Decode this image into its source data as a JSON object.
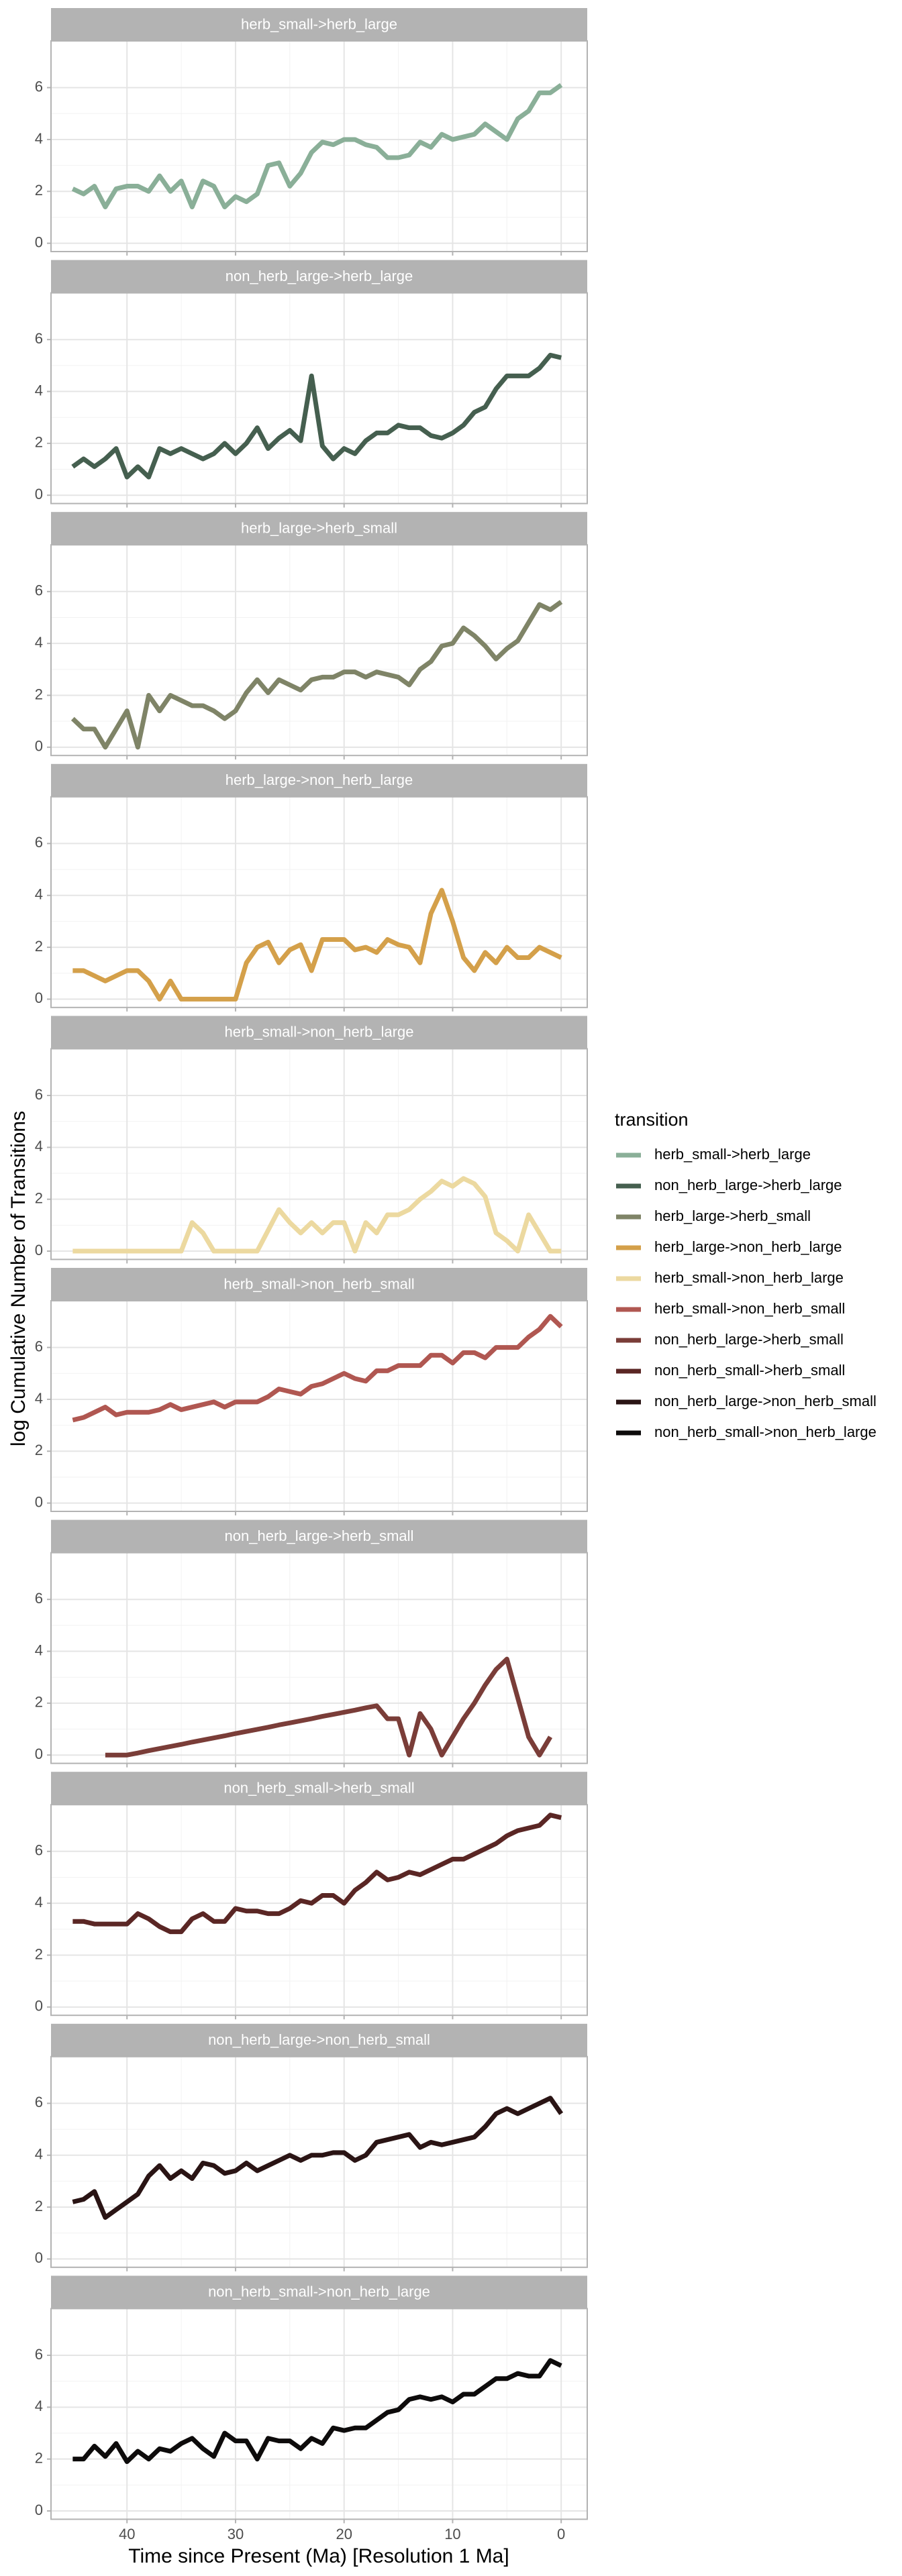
{
  "chart_data": {
    "type": "line",
    "y_label": "log Cumulative Number of Transitions",
    "x_label": "Time since Present (Ma) [Resolution 1 Ma]",
    "legend_title": "transition",
    "legend": "right",
    "grid": true,
    "x": [
      45,
      44,
      43,
      42,
      41,
      40,
      39,
      38,
      37,
      36,
      35,
      34,
      33,
      32,
      31,
      30,
      29,
      28,
      27,
      26,
      25,
      24,
      23,
      22,
      21,
      20,
      19,
      18,
      17,
      16,
      15,
      14,
      13,
      12,
      11,
      10,
      9,
      8,
      7,
      6,
      5,
      4,
      3,
      2,
      1,
      0
    ],
    "xlim": [
      47,
      -2.4
    ],
    "xticks": [
      40,
      30,
      20,
      10,
      0
    ],
    "ylim": [
      -0.32,
      7.8
    ],
    "yticks": [
      0,
      2,
      4,
      6
    ],
    "series": [
      {
        "name": "herb_small->herb_large",
        "color": "#8aaf98",
        "values": [
          2.1,
          1.9,
          2.2,
          1.4,
          2.1,
          2.2,
          2.2,
          2.0,
          2.6,
          2.0,
          2.4,
          1.4,
          2.4,
          2.2,
          1.4,
          1.8,
          1.6,
          1.9,
          3.0,
          3.1,
          2.2,
          2.7,
          3.5,
          3.9,
          3.8,
          4.0,
          4.0,
          3.8,
          3.7,
          3.3,
          3.3,
          3.4,
          3.9,
          3.7,
          4.2,
          4.0,
          4.1,
          4.2,
          4.6,
          4.3,
          4.0,
          4.8,
          5.1,
          5.8,
          5.8,
          6.1
        ]
      },
      {
        "name": "non_herb_large->herb_large",
        "color": "#455f4f",
        "values": [
          1.1,
          1.4,
          1.1,
          1.4,
          1.8,
          0.7,
          1.1,
          0.7,
          1.8,
          1.6,
          1.8,
          1.6,
          1.4,
          1.6,
          2.0,
          1.6,
          2.0,
          2.6,
          1.8,
          2.2,
          2.5,
          2.1,
          4.6,
          1.9,
          1.4,
          1.8,
          1.6,
          2.1,
          2.4,
          2.4,
          2.7,
          2.6,
          2.6,
          2.3,
          2.2,
          2.4,
          2.7,
          3.2,
          3.4,
          4.1,
          4.6,
          4.6,
          4.6,
          4.9,
          5.4,
          5.3
        ]
      },
      {
        "name": "herb_large->herb_small",
        "color": "#7f8467",
        "values": [
          1.1,
          0.7,
          0.7,
          0,
          0.7,
          1.4,
          0,
          2.0,
          1.4,
          2.0,
          1.8,
          1.6,
          1.6,
          1.4,
          1.1,
          1.4,
          2.1,
          2.6,
          2.1,
          2.6,
          2.4,
          2.2,
          2.6,
          2.7,
          2.7,
          2.9,
          2.9,
          2.7,
          2.9,
          2.8,
          2.7,
          2.4,
          3.0,
          3.3,
          3.9,
          4.0,
          4.6,
          4.3,
          3.9,
          3.4,
          3.8,
          4.1,
          4.8,
          5.5,
          5.3,
          5.6
        ]
      },
      {
        "name": "herb_large->non_herb_large",
        "color": "#d4a04a",
        "values": [
          1.1,
          1.1,
          0.9,
          0.7,
          0.9,
          1.1,
          1.1,
          0.7,
          0,
          0.7,
          0,
          0,
          0,
          0,
          0,
          0,
          1.4,
          2.0,
          2.2,
          1.4,
          1.9,
          2.1,
          1.1,
          2.3,
          2.3,
          2.3,
          1.9,
          2.0,
          1.8,
          2.3,
          2.1,
          2.0,
          1.4,
          3.3,
          4.2,
          3.0,
          1.6,
          1.1,
          1.8,
          1.4,
          2.0,
          1.6,
          1.6,
          2.0,
          1.8,
          1.6
        ]
      },
      {
        "name": "herb_small->non_herb_large",
        "color": "#ecd9a0",
        "values": [
          0,
          0,
          0,
          0,
          0,
          0,
          0,
          0,
          0,
          0,
          0,
          1.1,
          0.7,
          0,
          0,
          0,
          0,
          0,
          0.8,
          1.6,
          1.1,
          0.7,
          1.1,
          0.7,
          1.1,
          1.1,
          0,
          1.1,
          0.7,
          1.4,
          1.4,
          1.6,
          2.0,
          2.3,
          2.7,
          2.5,
          2.8,
          2.6,
          2.1,
          0.7,
          0.4,
          0,
          1.4,
          0.7,
          0,
          0
        ]
      },
      {
        "name": "herb_small->non_herb_small",
        "color": "#b05751",
        "values": [
          3.2,
          3.3,
          3.5,
          3.7,
          3.4,
          3.5,
          3.5,
          3.5,
          3.6,
          3.8,
          3.6,
          3.7,
          3.8,
          3.9,
          3.7,
          3.9,
          3.9,
          3.9,
          4.1,
          4.4,
          4.3,
          4.2,
          4.5,
          4.6,
          4.8,
          5.0,
          4.8,
          4.7,
          5.1,
          5.1,
          5.3,
          5.3,
          5.3,
          5.7,
          5.7,
          5.4,
          5.8,
          5.8,
          5.6,
          6.0,
          6.0,
          6.0,
          6.4,
          6.7,
          7.2,
          6.8
        ]
      },
      {
        "name": "non_herb_large->herb_small",
        "color": "#7a3d38",
        "values": [
          null,
          null,
          null,
          0,
          0,
          0,
          0.08,
          0.17,
          0.25,
          0.33,
          0.41,
          0.5,
          0.58,
          0.66,
          0.74,
          0.83,
          0.91,
          0.99,
          1.07,
          1.16,
          1.24,
          1.32,
          1.4,
          1.49,
          1.57,
          1.65,
          1.73,
          1.82,
          1.9,
          1.4,
          1.4,
          0,
          1.6,
          1.0,
          0,
          0.7,
          1.4,
          2.0,
          2.7,
          3.3,
          3.7,
          2.2,
          0.7,
          0,
          0.7,
          null
        ]
      },
      {
        "name": "non_herb_small->herb_small",
        "color": "#5a2624",
        "values": [
          3.3,
          3.3,
          3.2,
          3.2,
          3.2,
          3.2,
          3.6,
          3.4,
          3.1,
          2.9,
          2.9,
          3.4,
          3.6,
          3.3,
          3.3,
          3.8,
          3.7,
          3.7,
          3.6,
          3.6,
          3.8,
          4.1,
          4.0,
          4.3,
          4.3,
          4.0,
          4.5,
          4.8,
          5.2,
          4.9,
          5.0,
          5.2,
          5.1,
          5.3,
          5.5,
          5.7,
          5.7,
          5.9,
          6.1,
          6.3,
          6.6,
          6.8,
          6.9,
          7.0,
          7.4,
          7.3
        ]
      },
      {
        "name": "non_herb_large->non_herb_small",
        "color": "#2a1414",
        "values": [
          2.2,
          2.3,
          2.6,
          1.6,
          1.9,
          2.2,
          2.5,
          3.2,
          3.6,
          3.1,
          3.4,
          3.1,
          3.7,
          3.6,
          3.3,
          3.4,
          3.7,
          3.4,
          3.6,
          3.8,
          4.0,
          3.8,
          4.0,
          4.0,
          4.1,
          4.1,
          3.8,
          4.0,
          4.5,
          4.6,
          4.7,
          4.8,
          4.3,
          4.5,
          4.4,
          4.5,
          4.6,
          4.7,
          5.1,
          5.6,
          5.8,
          5.6,
          5.8,
          6.0,
          6.2,
          5.6
        ]
      },
      {
        "name": "non_herb_small->non_herb_large",
        "color": "#0d0b0b",
        "values": [
          2.0,
          2.0,
          2.5,
          2.1,
          2.6,
          1.9,
          2.3,
          2.0,
          2.4,
          2.3,
          2.6,
          2.8,
          2.4,
          2.1,
          3.0,
          2.7,
          2.7,
          2.0,
          2.8,
          2.7,
          2.7,
          2.4,
          2.8,
          2.6,
          3.2,
          3.1,
          3.2,
          3.2,
          3.5,
          3.8,
          3.9,
          4.3,
          4.4,
          4.3,
          4.4,
          4.2,
          4.5,
          4.5,
          4.8,
          5.1,
          5.1,
          5.3,
          5.2,
          5.2,
          5.8,
          5.6
        ]
      }
    ]
  }
}
